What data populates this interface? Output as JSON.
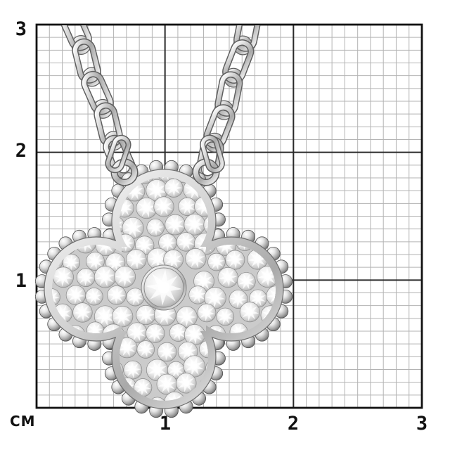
{
  "figure": {
    "subject": "pave-diamond-clover-pendant-with-cable-chain",
    "pendant_shape": "four-leaf-clover-with-beaded-border"
  },
  "ruler": {
    "unit_label": "СМ",
    "x_axis_labels": [
      "1",
      "2",
      "3"
    ],
    "y_axis_labels": [
      "3",
      "2",
      "1"
    ],
    "x_range_cm": [
      0,
      3
    ],
    "y_range_cm": [
      0,
      3
    ],
    "minor_divisions_per_cm": 10
  },
  "colors": {
    "background": "#ffffff",
    "grid_minor": "#b3b3b3",
    "grid_major": "#2a2a2a",
    "grid_border": "#111111",
    "label_text": "#111111",
    "metal_edge": "#5f5f5f",
    "pave_base": "#cbcbcb",
    "rim_line": "#6e6e6e"
  }
}
